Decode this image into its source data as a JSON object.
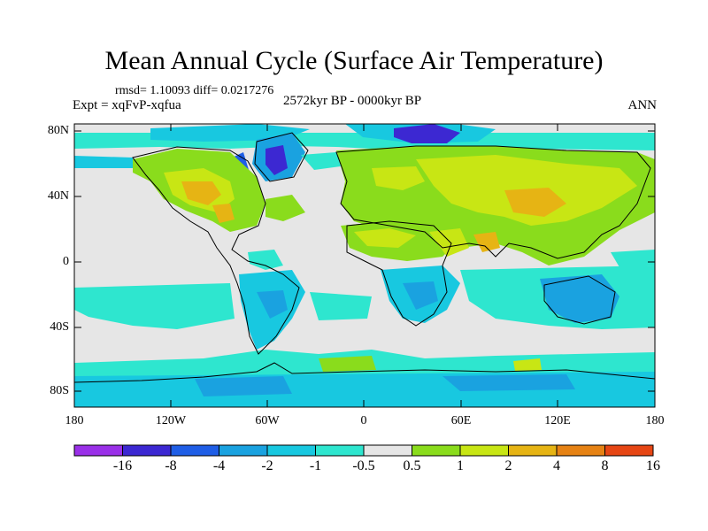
{
  "title": "Mean Annual Cycle (Surface Air Temperature)",
  "stats": "rmsd= 1.10093 diff= 0.0217276",
  "experiment": "Expt = xqFvP-xqfua",
  "period": "2572kyr BP - 0000kyr BP",
  "season": "ANN",
  "lat_labels": [
    "80N",
    "40N",
    "0",
    "40S",
    "80S"
  ],
  "lon_labels": [
    "180",
    "120W",
    "60W",
    "0",
    "60E",
    "120E",
    "180"
  ],
  "colorbar": {
    "labels": [
      "-16",
      "-8",
      "-4",
      "-2",
      "-1",
      "-0.5",
      "0.5",
      "1",
      "2",
      "4",
      "8",
      "16"
    ],
    "colors": [
      "#9a30e8",
      "#3c28d2",
      "#1f5ee6",
      "#1aa2e0",
      "#18c8e0",
      "#2ee6cf",
      "#e6e6e6",
      "#8adc1c",
      "#c8e614",
      "#e6b414",
      "#e68214",
      "#e64614"
    ]
  },
  "colors": {
    "no_change": "#e6e6e6",
    "warm_1": "#8adc1c",
    "warm_2": "#c8e614",
    "warm_4": "#e6b414",
    "cool_05": "#2ee6cf",
    "cool_1": "#18c8e0",
    "cool_2": "#1aa2e0",
    "cool_4": "#1f5ee6",
    "cool_8": "#3c28d2"
  }
}
